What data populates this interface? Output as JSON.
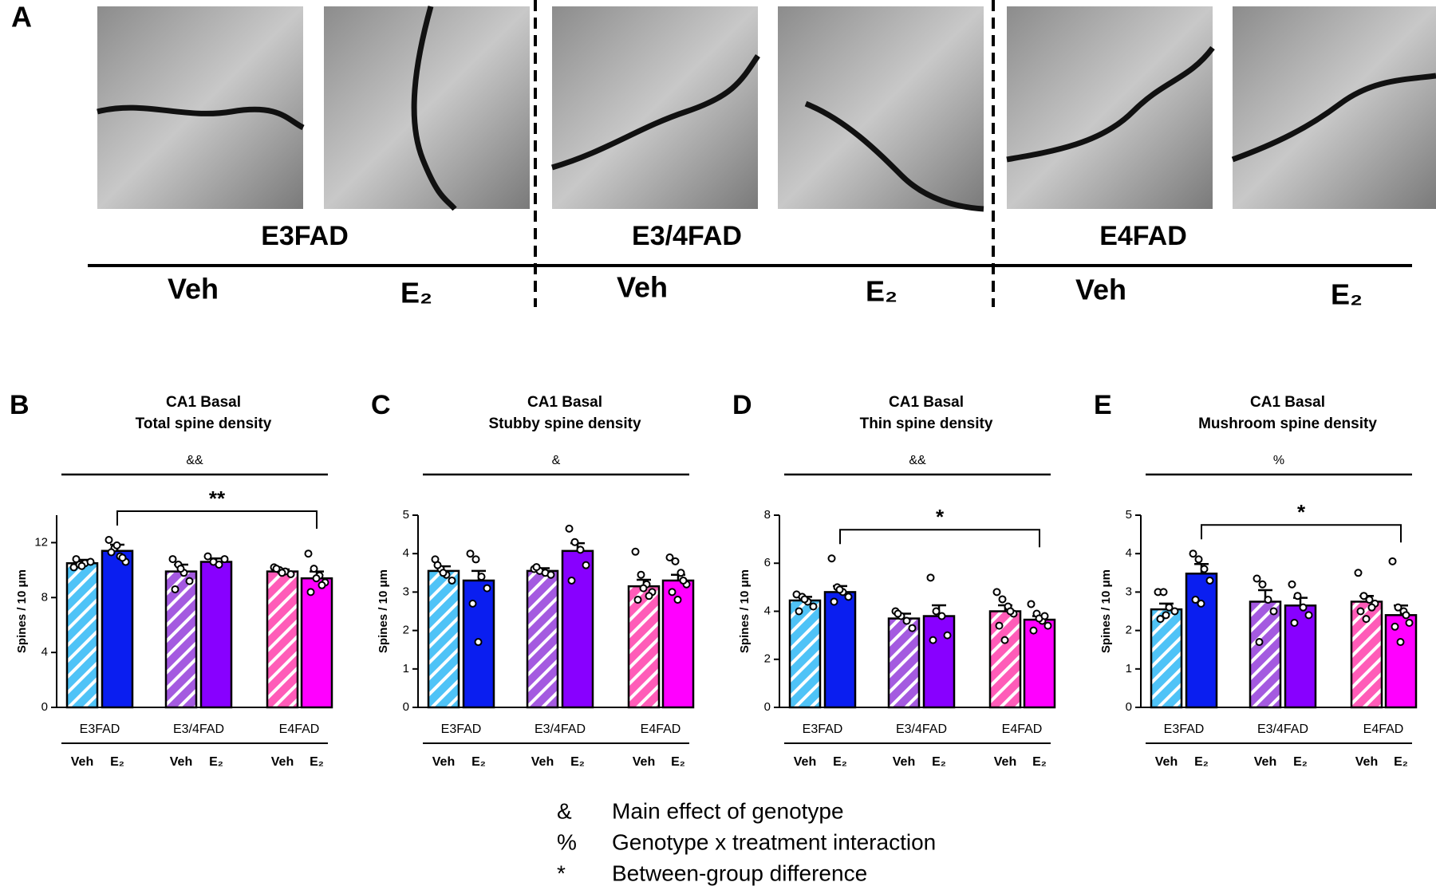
{
  "panel_a": {
    "label": "A",
    "genotypes": [
      "E3FAD",
      "E3/4FAD",
      "E4FAD"
    ],
    "treatments": [
      "Veh",
      "E₂"
    ]
  },
  "chart_data": [
    {
      "type": "bar",
      "panel": "B",
      "title": "CA1 Basal",
      "subtitle": "Total spine density",
      "ylabel": "Spines / 10 μm",
      "groups": [
        "E3FAD",
        "E3/4FAD",
        "E4FAD"
      ],
      "categories": [
        "Veh",
        "E₂",
        "Veh",
        "E₂",
        "Veh",
        "E₂"
      ],
      "colors": [
        "#4fc3f7",
        "#0a1ef0",
        "#a45ae0",
        "#8800ff",
        "#ff5cb8",
        "#ff00ff"
      ],
      "hatched": [
        true,
        false,
        true,
        false,
        true,
        false
      ],
      "values": [
        10.5,
        11.4,
        9.9,
        10.6,
        9.9,
        9.4
      ],
      "errors": [
        0.25,
        0.45,
        0.5,
        0.25,
        0.15,
        0.5
      ],
      "points": [
        [
          10.2,
          10.4,
          10.5,
          10.6,
          10.8,
          10.3
        ],
        [
          12.2,
          11.6,
          11.0,
          10.6,
          11.3,
          11.8,
          10.9
        ],
        [
          10.8,
          10.4,
          9.8,
          9.2,
          8.6,
          10.1
        ],
        [
          11.0,
          10.6,
          10.4,
          10.8
        ],
        [
          10.2,
          10.0,
          9.9,
          9.7,
          10.1,
          9.8
        ],
        [
          11.2,
          10.1,
          9.6,
          9.1,
          8.4,
          9.4,
          8.9
        ]
      ],
      "ylim": [
        0,
        14
      ],
      "yticks": [
        0,
        4,
        8,
        12
      ],
      "effect_symbol": "&&",
      "comparison": {
        "from": 1,
        "to": 5,
        "label": "**"
      }
    },
    {
      "type": "bar",
      "panel": "C",
      "title": "CA1 Basal",
      "subtitle": "Stubby spine density",
      "ylabel": "Spines / 10 μm",
      "groups": [
        "E3FAD",
        "E3/4FAD",
        "E4FAD"
      ],
      "categories": [
        "Veh",
        "E₂",
        "Veh",
        "E₂",
        "Veh",
        "E₂"
      ],
      "colors": [
        "#4fc3f7",
        "#0a1ef0",
        "#a45ae0",
        "#8800ff",
        "#ff5cb8",
        "#ff00ff"
      ],
      "hatched": [
        true,
        false,
        true,
        false,
        true,
        false
      ],
      "values": [
        3.55,
        3.3,
        3.55,
        4.07,
        3.15,
        3.3
      ],
      "errors": [
        0.12,
        0.25,
        0.07,
        0.2,
        0.17,
        0.15
      ],
      "points": [
        [
          3.85,
          3.6,
          3.45,
          3.3,
          3.7,
          3.5
        ],
        [
          4.0,
          3.85,
          3.4,
          3.1,
          2.7,
          1.7
        ],
        [
          3.6,
          3.55,
          3.5,
          3.45,
          3.65
        ],
        [
          4.65,
          4.3,
          4.1,
          3.7,
          3.3
        ],
        [
          4.05,
          3.45,
          3.2,
          3.0,
          2.8,
          3.1,
          2.9
        ],
        [
          3.9,
          3.8,
          3.5,
          3.2,
          3.0,
          2.8,
          3.3
        ]
      ],
      "ylim": [
        0,
        5
      ],
      "yticks": [
        0,
        1,
        2,
        3,
        4,
        5
      ],
      "effect_symbol": "&"
    },
    {
      "type": "bar",
      "panel": "D",
      "title": "CA1 Basal",
      "subtitle": "Thin spine density",
      "ylabel": "Spines / 10 μm",
      "groups": [
        "E3FAD",
        "E3/4FAD",
        "E4FAD"
      ],
      "categories": [
        "Veh",
        "E₂",
        "Veh",
        "E₂",
        "Veh",
        "E₂"
      ],
      "colors": [
        "#4fc3f7",
        "#0a1ef0",
        "#a45ae0",
        "#8800ff",
        "#ff5cb8",
        "#ff00ff"
      ],
      "hatched": [
        true,
        false,
        true,
        false,
        true,
        false
      ],
      "values": [
        4.45,
        4.8,
        3.7,
        3.8,
        4.0,
        3.65
      ],
      "errors": [
        0.15,
        0.25,
        0.2,
        0.45,
        0.25,
        0.15
      ],
      "points": [
        [
          4.7,
          4.6,
          4.4,
          4.2,
          4.0,
          4.5
        ],
        [
          6.2,
          5.0,
          4.8,
          4.6,
          4.4,
          4.9
        ],
        [
          4.0,
          3.8,
          3.6,
          3.3,
          3.9
        ],
        [
          5.4,
          4.0,
          3.8,
          3.0,
          2.8
        ],
        [
          4.8,
          4.5,
          4.2,
          3.9,
          3.4,
          2.8,
          4.0
        ],
        [
          4.3,
          3.9,
          3.6,
          3.4,
          3.2,
          3.7,
          3.8
        ]
      ],
      "ylim": [
        0,
        8
      ],
      "yticks": [
        0,
        2,
        4,
        6,
        8
      ],
      "effect_symbol": "&&",
      "comparison": {
        "from": 1,
        "to": 5,
        "label": "*"
      }
    },
    {
      "type": "bar",
      "panel": "E",
      "title": "CA1 Basal",
      "subtitle": "Mushroom spine density",
      "ylabel": "Spines / 10 μm",
      "groups": [
        "E3FAD",
        "E3/4FAD",
        "E4FAD"
      ],
      "categories": [
        "Veh",
        "E₂",
        "Veh",
        "E₂",
        "Veh",
        "E₂"
      ],
      "colors": [
        "#4fc3f7",
        "#0a1ef0",
        "#a45ae0",
        "#8800ff",
        "#ff5cb8",
        "#ff00ff"
      ],
      "hatched": [
        true,
        false,
        true,
        false,
        true,
        false
      ],
      "values": [
        2.55,
        3.48,
        2.75,
        2.65,
        2.75,
        2.4
      ],
      "errors": [
        0.15,
        0.25,
        0.3,
        0.2,
        0.15,
        0.25
      ],
      "points": [
        [
          3.0,
          3.0,
          2.6,
          2.5,
          2.3,
          2.4
        ],
        [
          4.0,
          3.85,
          3.6,
          3.3,
          2.8,
          2.7
        ],
        [
          3.35,
          3.2,
          2.8,
          2.5,
          1.7
        ],
        [
          3.2,
          2.9,
          2.6,
          2.4,
          2.2
        ],
        [
          3.5,
          2.9,
          2.8,
          2.7,
          2.5,
          2.3,
          2.6
        ],
        [
          3.8,
          2.6,
          2.5,
          2.2,
          2.1,
          1.7,
          2.4
        ]
      ],
      "ylim": [
        0,
        5
      ],
      "yticks": [
        0,
        1,
        2,
        3,
        4,
        5
      ],
      "effect_symbol": "%",
      "comparison": {
        "from": 1,
        "to": 5,
        "label": "*"
      }
    }
  ],
  "legend": [
    {
      "symbol": "&",
      "text": "Main effect of genotype"
    },
    {
      "symbol": "%",
      "text": "Genotype x treatment interaction"
    },
    {
      "symbol": "*",
      "text": "Between-group difference"
    }
  ]
}
